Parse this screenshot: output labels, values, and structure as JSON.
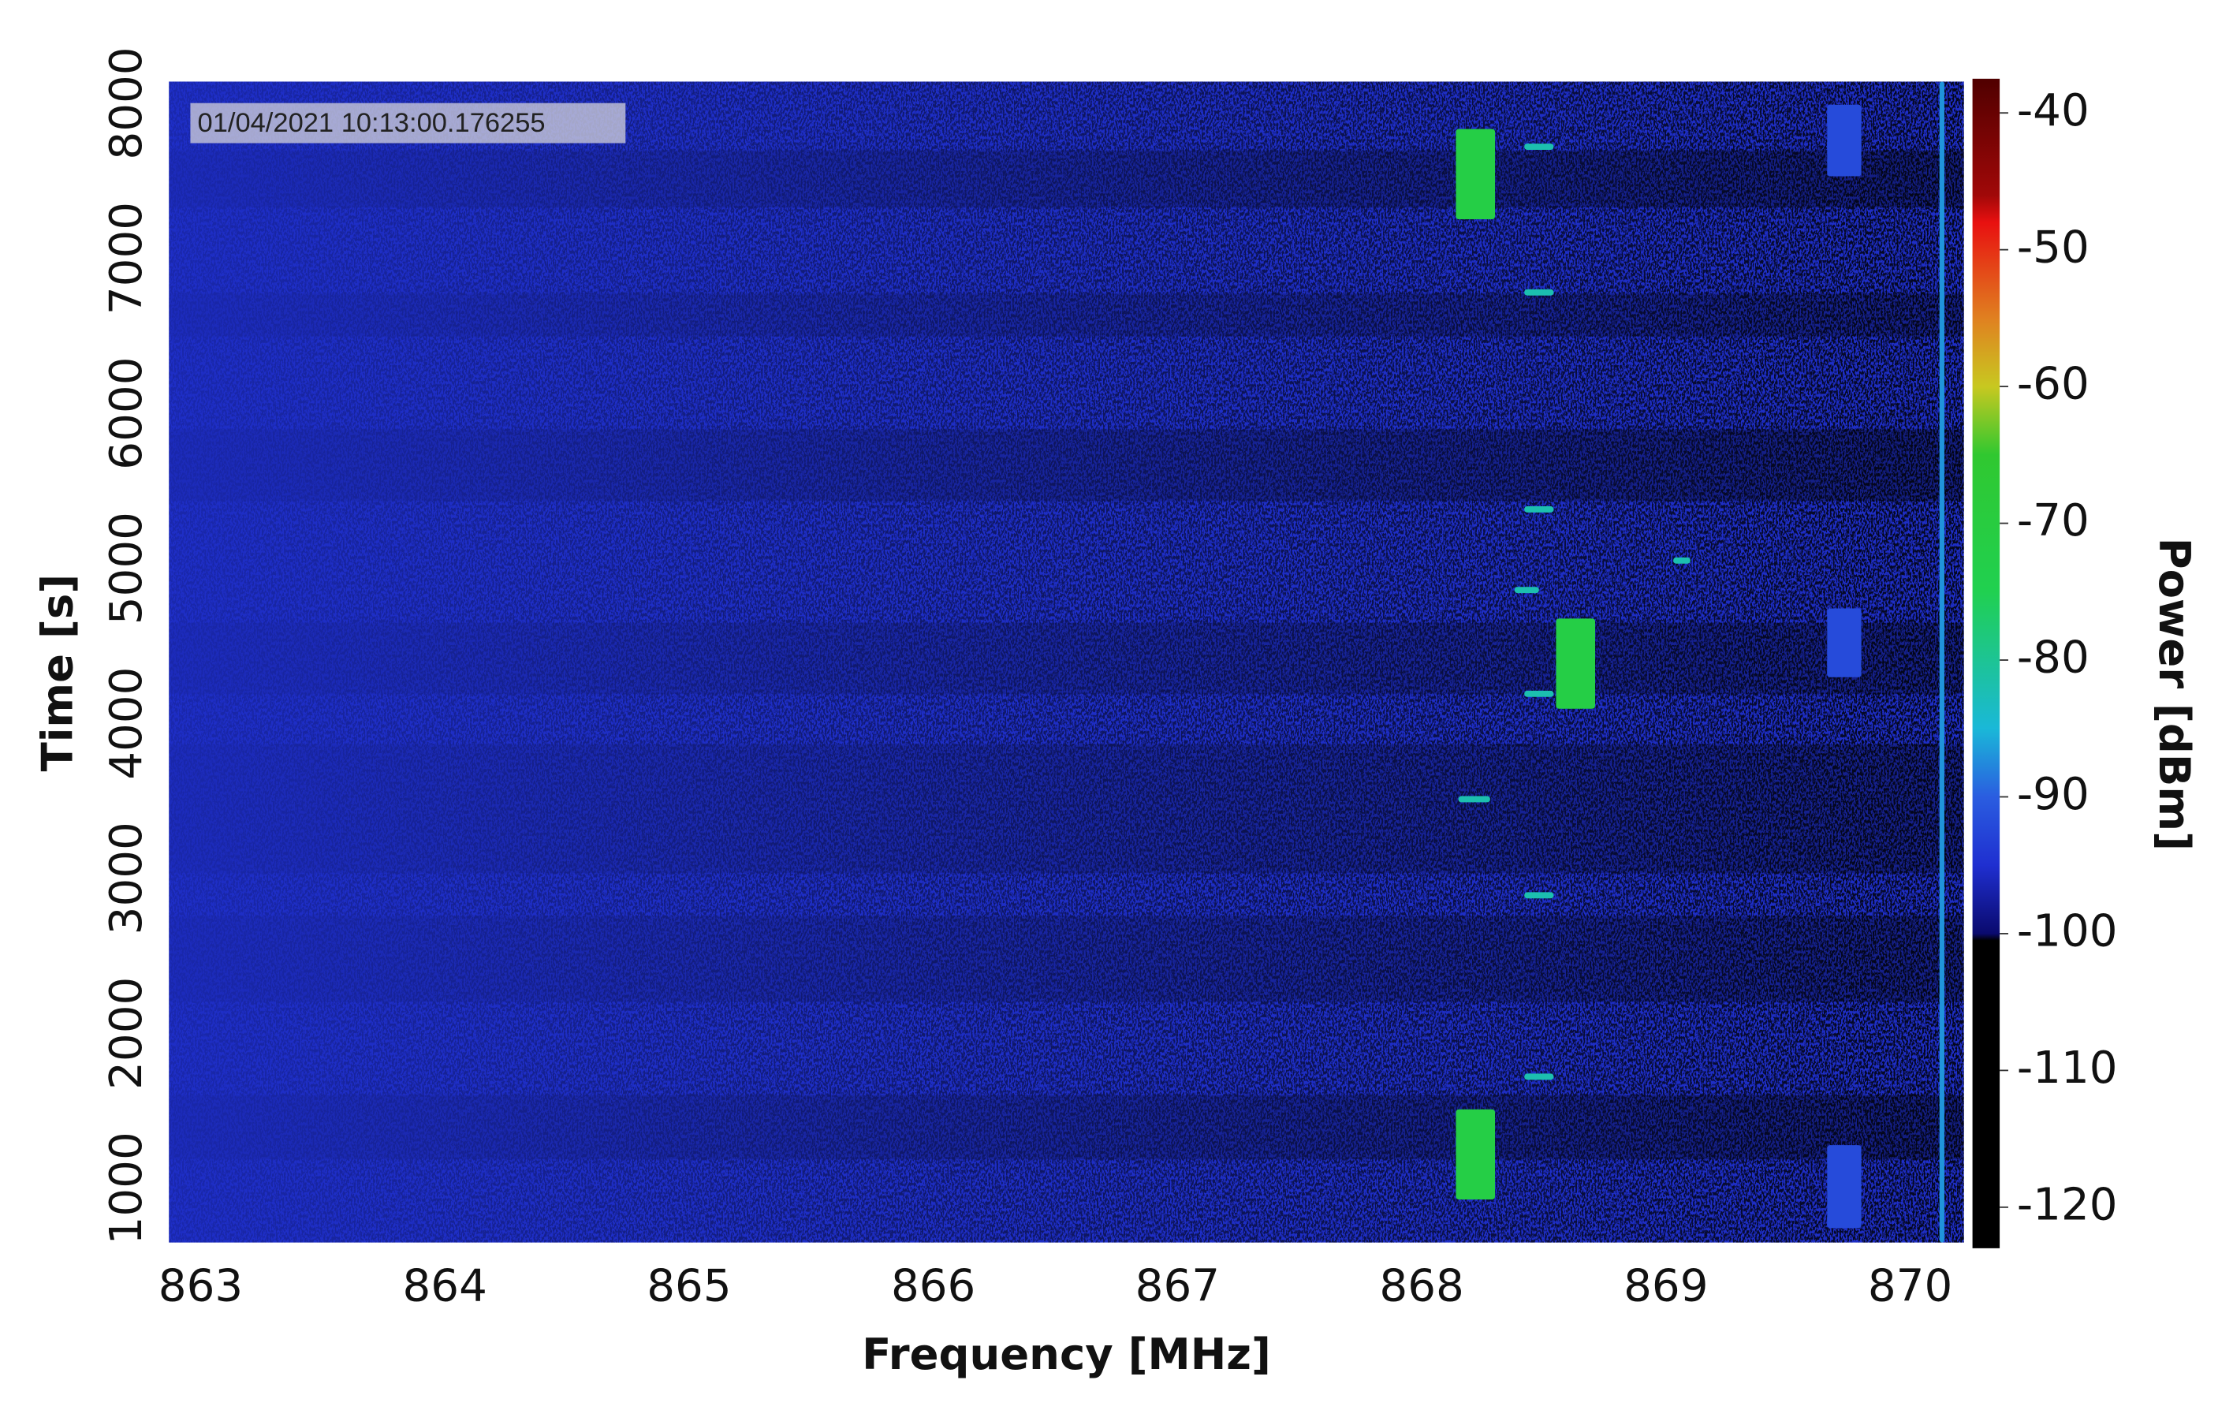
{
  "chart_data": {
    "type": "spectrogram",
    "x_label": "Frequency [MHz]",
    "y_label": "Time [s]",
    "colorbar_label": "Power [dBm]",
    "annotation": "01/04/2021 10:13:00.176255",
    "xlim": [
      862.87,
      870.22
    ],
    "xticks": [
      863,
      864,
      865,
      866,
      867,
      868,
      869,
      870
    ],
    "ylim": [
      650,
      8140
    ],
    "yticks": [
      1000,
      2000,
      3000,
      4000,
      5000,
      6000,
      7000,
      8000
    ],
    "clim": [
      -123,
      -37.5
    ],
    "cticks": [
      -40,
      -50,
      -60,
      -70,
      -80,
      -90,
      -100,
      -110,
      -120
    ],
    "colormap": [
      {
        "value": -123,
        "color": "#000000"
      },
      {
        "value": -100.5,
        "color": "#000000"
      },
      {
        "value": -100,
        "color": "#0a0a6e"
      },
      {
        "value": -95,
        "color": "#1f2fd0"
      },
      {
        "value": -90,
        "color": "#2a5de0"
      },
      {
        "value": -85,
        "color": "#1ab8d8"
      },
      {
        "value": -75,
        "color": "#20d050"
      },
      {
        "value": -65,
        "color": "#30c830"
      },
      {
        "value": -60,
        "color": "#c8c820"
      },
      {
        "value": -55,
        "color": "#e08020"
      },
      {
        "value": -48,
        "color": "#e81010"
      },
      {
        "value": -46,
        "color": "#a00808"
      },
      {
        "value": -37.5,
        "color": "#500000"
      }
    ],
    "signals": [
      {
        "f0": 868.14,
        "f1": 868.3,
        "t0": 7252,
        "t1": 7834,
        "power": -72
      },
      {
        "f0": 868.55,
        "f1": 868.71,
        "t0": 4094,
        "t1": 4676,
        "power": -72
      },
      {
        "f0": 868.14,
        "f1": 868.3,
        "t0": 928,
        "t1": 1509,
        "power": -72
      },
      {
        "f0": 869.66,
        "f1": 869.8,
        "t0": 7529,
        "t1": 7991,
        "power": -92
      },
      {
        "f0": 869.66,
        "f1": 869.8,
        "t0": 4297,
        "t1": 4741,
        "power": -92
      },
      {
        "f0": 869.66,
        "f1": 869.8,
        "t0": 743,
        "t1": 1278,
        "power": -92
      },
      {
        "f0": 870.12,
        "f1": 870.14,
        "t0": 650,
        "t1": 8140,
        "power": -87
      },
      {
        "f0": 868.42,
        "f1": 868.54,
        "t0": 7700,
        "t1": 7740,
        "power": -82
      },
      {
        "f0": 868.42,
        "f1": 868.54,
        "t0": 6760,
        "t1": 6800,
        "power": -82
      },
      {
        "f0": 868.42,
        "f1": 868.54,
        "t0": 5360,
        "t1": 5400,
        "power": -82
      },
      {
        "f0": 868.38,
        "f1": 868.48,
        "t0": 4840,
        "t1": 4880,
        "power": -82
      },
      {
        "f0": 868.42,
        "f1": 868.54,
        "t0": 4170,
        "t1": 4210,
        "power": -82
      },
      {
        "f0": 868.15,
        "f1": 868.28,
        "t0": 3490,
        "t1": 3530,
        "power": -82
      },
      {
        "f0": 868.42,
        "f1": 868.54,
        "t0": 2870,
        "t1": 2910,
        "power": -82
      },
      {
        "f0": 868.42,
        "f1": 868.54,
        "t0": 1700,
        "t1": 1740,
        "power": -82
      },
      {
        "f0": 869.03,
        "f1": 869.1,
        "t0": 5030,
        "t1": 5070,
        "power": -82
      }
    ]
  }
}
